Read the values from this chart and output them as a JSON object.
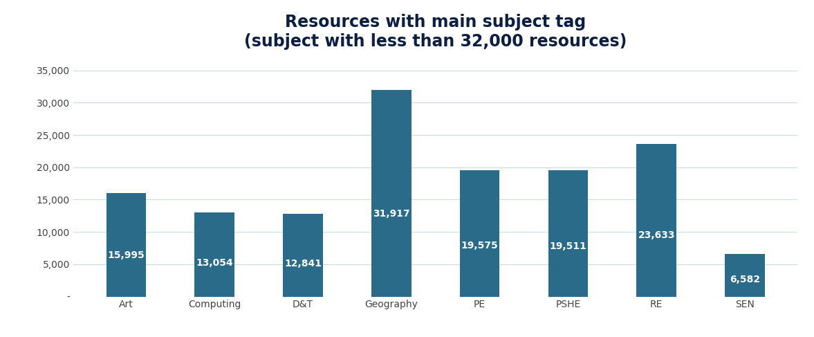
{
  "categories": [
    "Art",
    "Computing",
    "D&T",
    "Geography",
    "PE",
    "PSHE",
    "RE",
    "SEN"
  ],
  "values": [
    15995,
    13054,
    12841,
    31917,
    19575,
    19511,
    23633,
    6582
  ],
  "bar_color": "#2a6b8a",
  "label_color": "#ffffff",
  "title_line1": "Resources with main subject tag",
  "title_line2": "(subject with less than 32,000 resources)",
  "title_color": "#0d1f40",
  "title_fontsize": 17,
  "label_fontsize": 10,
  "tick_label_fontsize": 10,
  "ylabel_ticks": [
    0,
    5000,
    10000,
    15000,
    20000,
    25000,
    30000,
    35000
  ],
  "ylim": [
    0,
    36500
  ],
  "background_color": "#ffffff",
  "grid_color": "#c8dce8",
  "bar_width": 0.45
}
